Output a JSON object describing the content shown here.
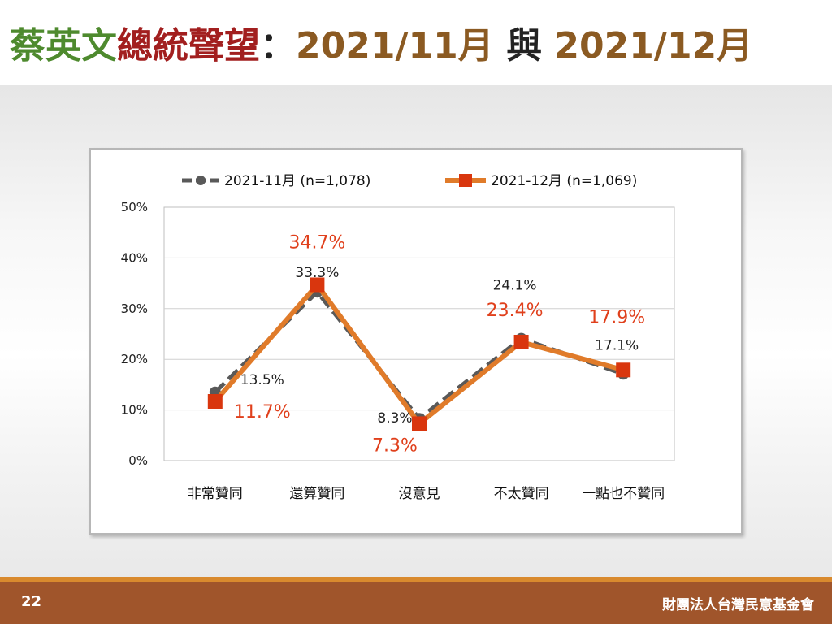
{
  "title": {
    "part1": "蔡英文",
    "part2": "總統聲望",
    "sep": "：",
    "part3": "2021/11月",
    "part4": " 與 ",
    "part5": "2021/12月"
  },
  "footer": {
    "page_number": "22",
    "organization": "財團法人台灣民意基金會"
  },
  "colors": {
    "series1": "#595959",
    "series2": "#e07b2a",
    "series2_marker": "#d9360e",
    "series2_label": "#e0401c"
  },
  "chart_data": {
    "type": "line",
    "categories": [
      "非常贊同",
      "還算贊同",
      "沒意見",
      "不太贊同",
      "一點也不贊同"
    ],
    "series": [
      {
        "name": "2021-11月  (n=1,078)",
        "values": [
          13.5,
          33.3,
          8.3,
          24.1,
          17.1
        ],
        "labels": [
          "13.5%",
          "33.3%",
          "8.3%",
          "24.1%",
          "17.1%"
        ]
      },
      {
        "name": "2021-12月  (n=1,069)",
        "values": [
          11.7,
          34.7,
          7.3,
          23.4,
          17.9
        ],
        "labels": [
          "11.7%",
          "34.7%",
          "7.3%",
          "23.4%",
          "17.9%"
        ]
      }
    ],
    "yticks": [
      "0%",
      "10%",
      "20%",
      "30%",
      "40%",
      "50%"
    ],
    "ylim": [
      0,
      50
    ],
    "grid": true,
    "legend": "top"
  }
}
